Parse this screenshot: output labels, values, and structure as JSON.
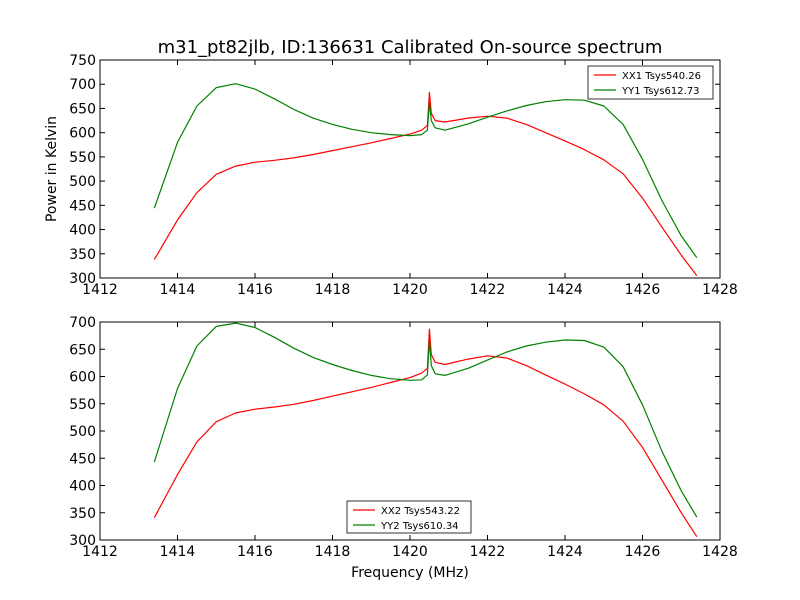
{
  "title": "m31_pt82jlb, ID:136631 Calibrated On-source spectrum",
  "xlabel": "Frequency (MHz)",
  "ylabel": "Power in Kelvin",
  "colors": {
    "red": "#ff0000",
    "green": "#008000"
  },
  "chart_data": [
    {
      "type": "line",
      "xlim": [
        1412,
        1428
      ],
      "ylim": [
        300,
        750
      ],
      "xticks": [
        1412,
        1414,
        1416,
        1418,
        1420,
        1422,
        1424,
        1426,
        1428
      ],
      "yticks": [
        300,
        350,
        400,
        450,
        500,
        550,
        600,
        650,
        700,
        750
      ],
      "grid": false,
      "legend_position": "upper-right",
      "series": [
        {
          "name": "XX1 Tsys540.26",
          "color": "#ff0000",
          "x": [
            1413.4,
            1414.0,
            1414.5,
            1415.0,
            1415.5,
            1416.0,
            1416.5,
            1417.0,
            1417.5,
            1418.0,
            1418.5,
            1419.0,
            1419.5,
            1420.0,
            1420.3,
            1420.45,
            1420.5,
            1420.55,
            1420.65,
            1420.9,
            1421.5,
            1422.0,
            1422.5,
            1423.0,
            1423.5,
            1424.0,
            1424.5,
            1425.0,
            1425.5,
            1426.0,
            1426.5,
            1427.0,
            1427.4
          ],
          "y": [
            338,
            420,
            476,
            514,
            531,
            539,
            543,
            548,
            555,
            563,
            571,
            579,
            588,
            597,
            605,
            615,
            683,
            640,
            625,
            622,
            630,
            634,
            630,
            617,
            600,
            583,
            565,
            544,
            515,
            465,
            405,
            347,
            305
          ]
        },
        {
          "name": "YY1 Tsys612.73",
          "color": "#008000",
          "x": [
            1413.4,
            1414.0,
            1414.5,
            1415.0,
            1415.5,
            1416.0,
            1416.5,
            1417.0,
            1417.5,
            1418.0,
            1418.5,
            1419.0,
            1419.5,
            1420.0,
            1420.3,
            1420.45,
            1420.5,
            1420.55,
            1420.65,
            1420.9,
            1421.5,
            1422.0,
            1422.5,
            1423.0,
            1423.5,
            1424.0,
            1424.5,
            1425.0,
            1425.5,
            1426.0,
            1426.5,
            1427.0,
            1427.4
          ],
          "y": [
            444,
            580,
            655,
            693,
            701,
            690,
            670,
            648,
            630,
            617,
            607,
            600,
            596,
            594,
            596,
            605,
            662,
            625,
            610,
            605,
            618,
            632,
            645,
            656,
            664,
            668,
            667,
            655,
            617,
            545,
            460,
            387,
            342
          ]
        }
      ]
    },
    {
      "type": "line",
      "xlim": [
        1412,
        1428
      ],
      "ylim": [
        300,
        700
      ],
      "xticks": [
        1412,
        1414,
        1416,
        1418,
        1420,
        1422,
        1424,
        1426,
        1428
      ],
      "yticks": [
        300,
        350,
        400,
        450,
        500,
        550,
        600,
        650,
        700
      ],
      "grid": false,
      "legend_position": "lower-center",
      "series": [
        {
          "name": "XX2 Tsys543.22",
          "color": "#ff0000",
          "x": [
            1413.4,
            1414.0,
            1414.5,
            1415.0,
            1415.5,
            1416.0,
            1416.5,
            1417.0,
            1417.5,
            1418.0,
            1418.5,
            1419.0,
            1419.5,
            1420.0,
            1420.3,
            1420.45,
            1420.5,
            1420.55,
            1420.65,
            1420.9,
            1421.5,
            1422.0,
            1422.5,
            1423.0,
            1423.5,
            1424.0,
            1424.5,
            1425.0,
            1425.5,
            1426.0,
            1426.5,
            1427.0,
            1427.4
          ],
          "y": [
            341,
            420,
            480,
            517,
            533,
            540,
            544,
            549,
            556,
            564,
            572,
            580,
            589,
            598,
            606,
            615,
            687,
            640,
            626,
            622,
            632,
            638,
            634,
            620,
            603,
            586,
            568,
            548,
            518,
            470,
            410,
            350,
            306
          ]
        },
        {
          "name": "YY2 Tsys610.34",
          "color": "#008000",
          "x": [
            1413.4,
            1414.0,
            1414.5,
            1415.0,
            1415.5,
            1416.0,
            1416.5,
            1417.0,
            1417.5,
            1418.0,
            1418.5,
            1419.0,
            1419.5,
            1420.0,
            1420.3,
            1420.45,
            1420.5,
            1420.55,
            1420.65,
            1420.9,
            1421.5,
            1422.0,
            1422.5,
            1423.0,
            1423.5,
            1424.0,
            1424.5,
            1425.0,
            1425.5,
            1426.0,
            1426.5,
            1427.0,
            1427.4
          ],
          "y": [
            443,
            578,
            656,
            692,
            698,
            690,
            672,
            652,
            635,
            622,
            611,
            602,
            596,
            593,
            594,
            603,
            667,
            620,
            605,
            602,
            615,
            630,
            645,
            656,
            663,
            667,
            666,
            654,
            618,
            548,
            463,
            390,
            342
          ]
        }
      ]
    }
  ]
}
